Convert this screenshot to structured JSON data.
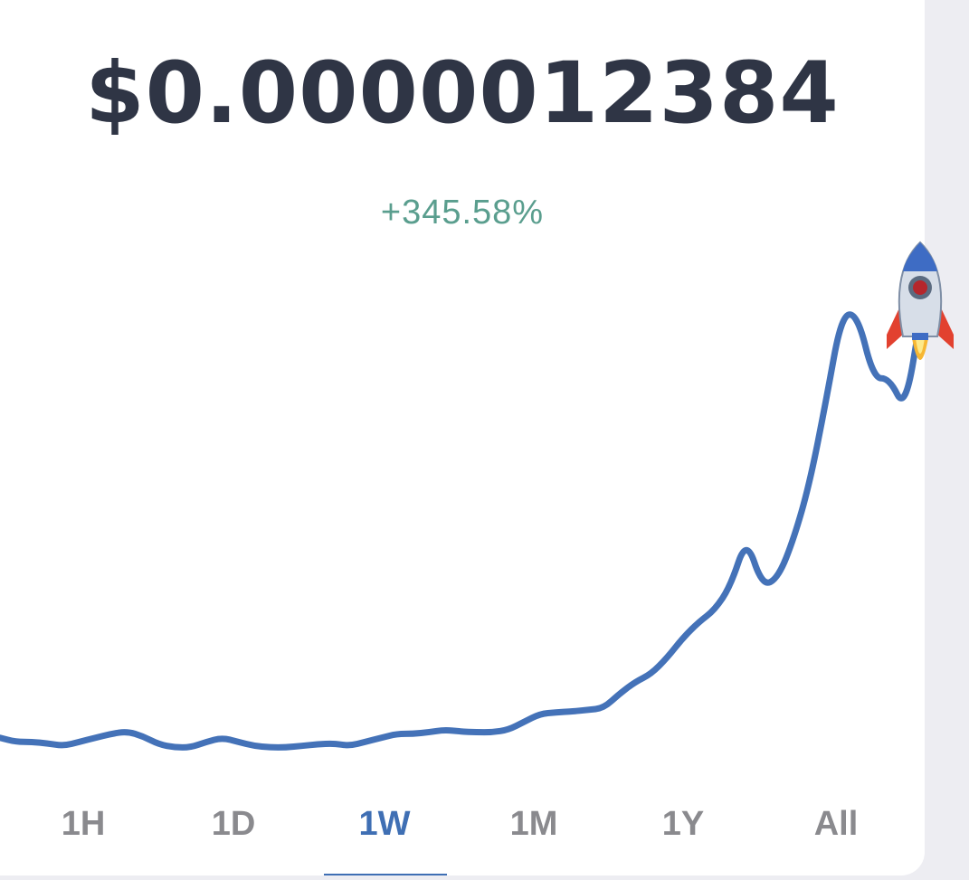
{
  "price": "$0.0000012384",
  "change_percent": "+345.58%",
  "colors": {
    "line": "#4472b8",
    "price_text": "#2f3545",
    "change_positive": "#5a9e8e",
    "tab_inactive": "#8a8a8e",
    "tab_active": "#3f6fb4",
    "background": "#ffffff"
  },
  "rocket_icon": "rocket-icon",
  "tabs": [
    {
      "label": "1H",
      "active": false
    },
    {
      "label": "1D",
      "active": false
    },
    {
      "label": "1W",
      "active": true
    },
    {
      "label": "1M",
      "active": false
    },
    {
      "label": "1Y",
      "active": false
    },
    {
      "label": "All",
      "active": false
    }
  ],
  "chart_data": {
    "type": "line",
    "title": "",
    "xlabel": "",
    "ylabel": "",
    "series": [
      {
        "values": [
          1.0,
          0.95,
          0.95,
          0.93,
          0.9,
          0.95,
          1.0,
          1.05,
          1.08,
          1.02,
          0.92,
          0.88,
          0.88,
          0.95,
          1.0,
          0.95,
          0.9,
          0.88,
          0.88,
          0.9,
          0.92,
          0.93,
          0.9,
          0.95,
          1.0,
          1.05,
          1.05,
          1.07,
          1.1,
          1.08,
          1.07,
          1.07,
          1.1,
          1.2,
          1.3,
          1.32,
          1.33,
          1.35,
          1.37,
          1.55,
          1.7,
          1.8,
          2.0,
          2.25,
          2.45,
          2.6,
          2.9,
          3.5,
          2.9,
          3.0,
          3.5,
          4.2,
          5.2,
          6.3,
          6.3,
          5.5,
          5.5,
          5.1,
          6.3
        ]
      }
    ],
    "ylim": [
      0.5,
      6.5
    ],
    "grid": false,
    "legend": "none"
  }
}
